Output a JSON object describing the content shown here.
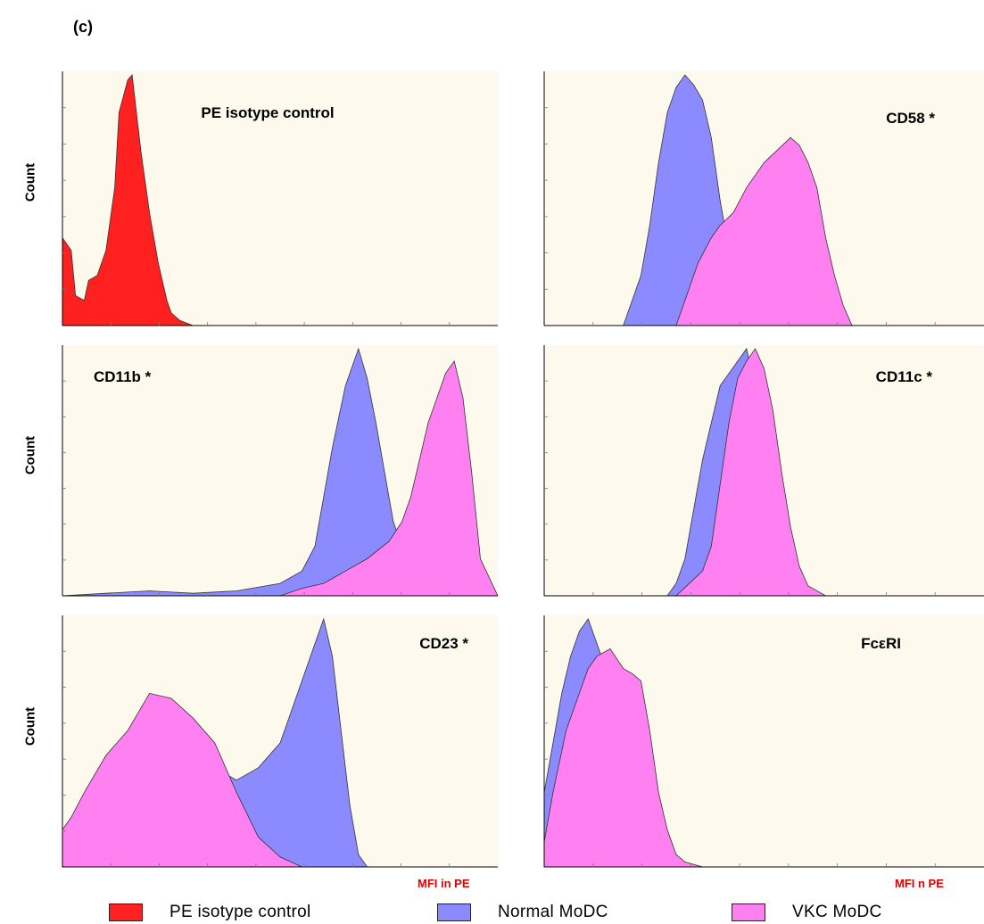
{
  "figure": {
    "panel_letter": "(c)",
    "y_axis_label": "Count",
    "x_axis_label_left": "MFI in PE",
    "x_axis_label_right": "MFI n PE",
    "legend": [
      {
        "label": "PE isotype control",
        "color": "#ff2020"
      },
      {
        "label": "Normal MoDC",
        "color": "#8b8bff"
      },
      {
        "label": "VKC MoDC",
        "color": "#ff80f0"
      }
    ]
  },
  "chart_data": [
    {
      "type": "area",
      "title": "PE isotype control",
      "ylabel": "Count",
      "grid": false,
      "series": [
        {
          "name": "PE isotype control",
          "color": "#ff2020",
          "x": [
            0,
            0.02,
            0.03,
            0.05,
            0.06,
            0.08,
            0.1,
            0.12,
            0.13,
            0.15,
            0.16,
            0.18,
            0.2,
            0.22,
            0.24,
            0.25,
            0.27,
            0.3,
            0.35,
            1.0
          ],
          "y": [
            0.35,
            0.3,
            0.12,
            0.1,
            0.18,
            0.2,
            0.3,
            0.55,
            0.85,
            0.98,
            1.0,
            0.7,
            0.45,
            0.25,
            0.1,
            0.05,
            0.02,
            0.0,
            0.0,
            0.0
          ]
        }
      ]
    },
    {
      "type": "area",
      "title": "CD58 *",
      "grid": false,
      "series": [
        {
          "name": "Normal MoDC",
          "color": "#8b8bff",
          "x": [
            0,
            0.18,
            0.2,
            0.22,
            0.24,
            0.26,
            0.28,
            0.3,
            0.32,
            0.34,
            0.36,
            0.38,
            0.4,
            0.42,
            0.44,
            0.46,
            0.48,
            0.5,
            1.0
          ],
          "y": [
            0.0,
            0.0,
            0.1,
            0.2,
            0.4,
            0.65,
            0.85,
            0.95,
            1.0,
            0.96,
            0.9,
            0.75,
            0.5,
            0.3,
            0.15,
            0.05,
            0.02,
            0.0,
            0.0
          ]
        },
        {
          "name": "VKC MoDC",
          "color": "#ff80f0",
          "x": [
            0,
            0.3,
            0.32,
            0.35,
            0.38,
            0.4,
            0.43,
            0.46,
            0.5,
            0.53,
            0.56,
            0.58,
            0.6,
            0.62,
            0.64,
            0.66,
            0.68,
            0.7,
            1.0
          ],
          "y": [
            0.0,
            0.0,
            0.1,
            0.25,
            0.35,
            0.4,
            0.45,
            0.55,
            0.65,
            0.7,
            0.75,
            0.72,
            0.65,
            0.55,
            0.35,
            0.2,
            0.08,
            0.0,
            0.0
          ]
        }
      ]
    },
    {
      "type": "area",
      "title": "CD11b *",
      "ylabel": "Count",
      "grid": false,
      "series": [
        {
          "name": "Normal MoDC",
          "color": "#8b8bff",
          "x": [
            0,
            0.1,
            0.2,
            0.3,
            0.4,
            0.5,
            0.55,
            0.58,
            0.6,
            0.62,
            0.65,
            0.68,
            0.7,
            0.72,
            0.74,
            0.76,
            0.78,
            0.8,
            0.82,
            0.85,
            1.0
          ],
          "y": [
            0.0,
            0.01,
            0.02,
            0.01,
            0.02,
            0.05,
            0.1,
            0.2,
            0.4,
            0.6,
            0.85,
            1.0,
            0.88,
            0.7,
            0.5,
            0.3,
            0.2,
            0.12,
            0.05,
            0.0,
            0.0
          ]
        },
        {
          "name": "VKC MoDC",
          "color": "#ff80f0",
          "x": [
            0,
            0.5,
            0.55,
            0.6,
            0.65,
            0.7,
            0.75,
            0.78,
            0.8,
            0.82,
            0.84,
            0.86,
            0.88,
            0.9,
            0.92,
            0.94,
            0.96,
            1.0
          ],
          "y": [
            0.0,
            0.0,
            0.03,
            0.05,
            0.1,
            0.15,
            0.22,
            0.3,
            0.4,
            0.55,
            0.7,
            0.8,
            0.9,
            0.95,
            0.8,
            0.5,
            0.15,
            0.0
          ]
        }
      ]
    },
    {
      "type": "area",
      "title": "CD11c *",
      "grid": false,
      "series": [
        {
          "name": "Normal MoDC",
          "color": "#8b8bff",
          "x": [
            0,
            0.28,
            0.3,
            0.32,
            0.34,
            0.36,
            0.38,
            0.4,
            0.42,
            0.44,
            0.46,
            0.48,
            0.5,
            0.52,
            0.54,
            0.56,
            0.6,
            1.0
          ],
          "y": [
            0.0,
            0.0,
            0.05,
            0.15,
            0.35,
            0.55,
            0.7,
            0.85,
            0.9,
            0.95,
            1.0,
            0.85,
            0.6,
            0.35,
            0.15,
            0.05,
            0.0,
            0.0
          ]
        },
        {
          "name": "VKC MoDC",
          "color": "#ff80f0",
          "x": [
            0,
            0.3,
            0.33,
            0.36,
            0.38,
            0.4,
            0.42,
            0.44,
            0.46,
            0.48,
            0.5,
            0.52,
            0.54,
            0.56,
            0.58,
            0.6,
            0.64,
            1.0
          ],
          "y": [
            0.0,
            0.0,
            0.05,
            0.1,
            0.2,
            0.45,
            0.7,
            0.88,
            0.95,
            1.0,
            0.92,
            0.75,
            0.5,
            0.28,
            0.12,
            0.04,
            0.0,
            0.0
          ]
        }
      ]
    },
    {
      "type": "area",
      "title": "CD23 *",
      "ylabel": "Count",
      "xlabel": "MFI in PE",
      "grid": false,
      "series": [
        {
          "name": "Normal MoDC",
          "color": "#8b8bff",
          "x": [
            0,
            0.05,
            0.1,
            0.15,
            0.2,
            0.3,
            0.35,
            0.4,
            0.45,
            0.5,
            0.52,
            0.55,
            0.58,
            0.6,
            0.62,
            0.64,
            0.66,
            0.68,
            0.7,
            1.0
          ],
          "y": [
            0.0,
            0.05,
            0.1,
            0.15,
            0.2,
            0.3,
            0.4,
            0.35,
            0.4,
            0.5,
            0.6,
            0.75,
            0.9,
            1.0,
            0.85,
            0.55,
            0.25,
            0.05,
            0.0,
            0.0
          ]
        },
        {
          "name": "VKC MoDC",
          "color": "#ff80f0",
          "x": [
            0,
            0.02,
            0.05,
            0.1,
            0.15,
            0.2,
            0.25,
            0.3,
            0.35,
            0.4,
            0.45,
            0.5,
            0.55,
            0.6,
            1.0
          ],
          "y": [
            0.15,
            0.2,
            0.3,
            0.45,
            0.55,
            0.7,
            0.68,
            0.6,
            0.5,
            0.3,
            0.12,
            0.04,
            0.0,
            0.0,
            0.0
          ]
        }
      ]
    },
    {
      "type": "area",
      "title": "FcεRI",
      "xlabel": "MFI n PE",
      "grid": false,
      "series": [
        {
          "name": "Normal MoDC",
          "color": "#8b8bff",
          "x": [
            0,
            0.02,
            0.04,
            0.06,
            0.08,
            0.1,
            0.12,
            0.14,
            0.16,
            0.18,
            0.2,
            0.22,
            0.24,
            0.26,
            0.3,
            1.0
          ],
          "y": [
            0.3,
            0.5,
            0.7,
            0.85,
            0.95,
            1.0,
            0.9,
            0.8,
            0.7,
            0.55,
            0.35,
            0.2,
            0.1,
            0.02,
            0.0,
            0.0
          ]
        },
        {
          "name": "VKC MoDC",
          "color": "#ff80f0",
          "x": [
            0,
            0.02,
            0.05,
            0.08,
            0.1,
            0.12,
            0.15,
            0.18,
            0.2,
            0.22,
            0.24,
            0.26,
            0.28,
            0.3,
            0.32,
            0.36,
            1.0
          ],
          "y": [
            0.1,
            0.3,
            0.55,
            0.7,
            0.8,
            0.85,
            0.88,
            0.8,
            0.78,
            0.75,
            0.55,
            0.3,
            0.15,
            0.05,
            0.02,
            0.0,
            0.0
          ]
        }
      ]
    }
  ]
}
